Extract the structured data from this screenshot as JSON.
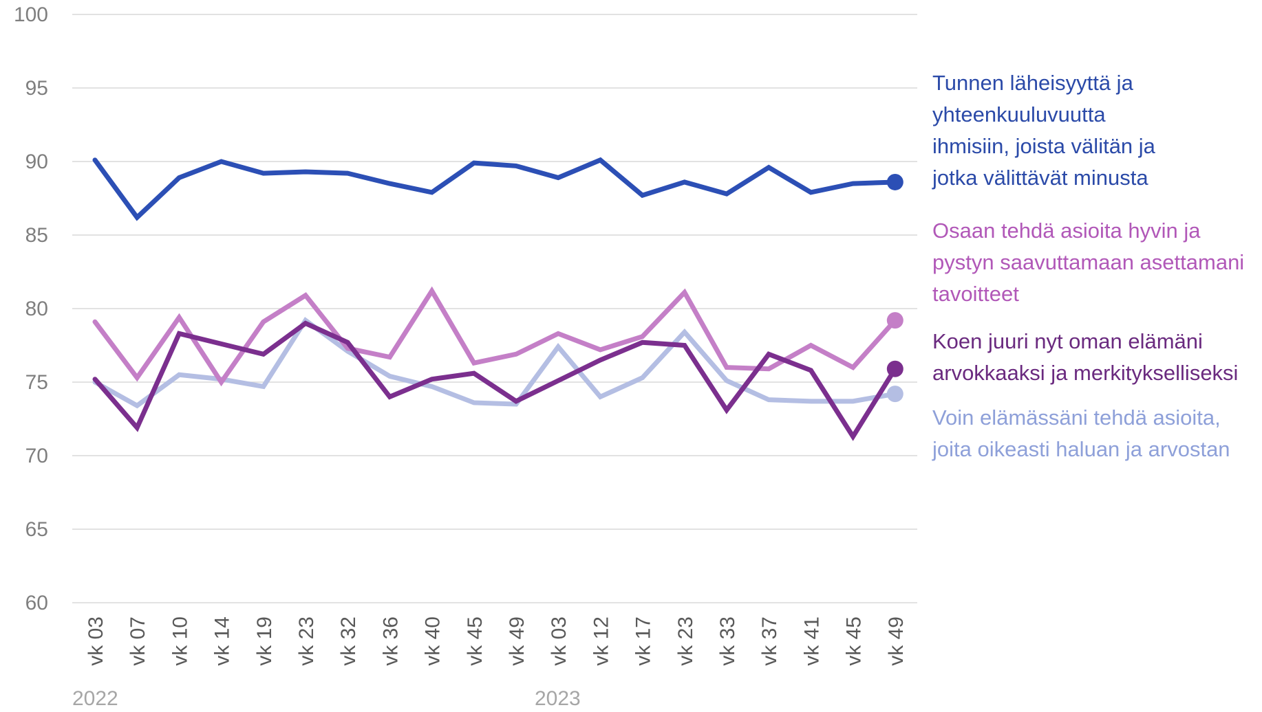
{
  "chart_data": {
    "type": "line",
    "ylim": [
      60,
      100
    ],
    "yticks": [
      "100",
      "95",
      "90",
      "85",
      "80",
      "75",
      "70",
      "65",
      "60"
    ],
    "categories": [
      "vk 03",
      "vk 07",
      "vk 10",
      "vk 14",
      "vk 19",
      "vk 23",
      "vk 32",
      "vk 36",
      "vk 40",
      "vk 45",
      "vk 49",
      "vk 03",
      "vk 12",
      "vk 17",
      "vk 23",
      "vk 33",
      "vk 37",
      "vk 41",
      "vk 45",
      "vk 49"
    ],
    "years": [
      {
        "label": "2022",
        "index": 0
      },
      {
        "label": "2023",
        "index": 11
      }
    ],
    "grid": true,
    "legend_placement": "right",
    "series": [
      {
        "name": "Voin elämässäni tehdä asioita, joita oikeasti haluan ja arvostan",
        "color": "#b4bee3",
        "values": [
          75.0,
          73.4,
          75.5,
          75.2,
          74.7,
          79.2,
          77.1,
          75.4,
          74.7,
          73.6,
          73.5,
          77.4,
          74.0,
          75.3,
          78.4,
          75.1,
          73.8,
          73.7,
          73.7,
          74.2
        ]
      },
      {
        "name": "Osaan tehdä asioita hyvin ja pystyn saavuttamaan asettamani tavoitteet",
        "color": "#c47fc7",
        "values": [
          79.1,
          75.3,
          79.4,
          75.0,
          79.1,
          80.9,
          77.3,
          76.7,
          81.2,
          76.3,
          76.9,
          78.3,
          77.2,
          78.1,
          81.1,
          76.0,
          75.9,
          77.5,
          76.0,
          79.2
        ]
      },
      {
        "name": "Koen juuri nyt oman elämäni arvokkaaksi ja merkitykselliseksi",
        "color": "#7b2f8e",
        "values": [
          75.2,
          71.9,
          78.3,
          77.6,
          76.9,
          79.0,
          77.7,
          74.0,
          75.2,
          75.6,
          73.7,
          75.1,
          76.5,
          77.7,
          77.5,
          73.1,
          76.9,
          75.8,
          71.3,
          75.9
        ]
      },
      {
        "name": "Tunnen läheisyyttä ja yhteenkuuluvuutta ihmisiin, joista välitän ja jotka välittävät minusta",
        "color": "#2c4fb5",
        "values": [
          90.1,
          86.2,
          88.9,
          90.0,
          89.2,
          89.3,
          89.2,
          88.5,
          87.9,
          89.9,
          89.7,
          88.9,
          90.1,
          87.7,
          88.6,
          87.8,
          89.6,
          87.9,
          88.5,
          88.6
        ]
      }
    ]
  },
  "legend": [
    {
      "id": "blue",
      "lines": [
        "Tunnen läheisyyttä ja",
        "yhteenkuuluvuutta",
        "ihmisiin, joista välitän ja",
        "jotka välittävät minusta"
      ],
      "color": "#2b4aa8"
    },
    {
      "id": "pink",
      "lines": [
        "Osaan tehdä asioita hyvin ja",
        "pystyn saavuttamaan asettamani",
        "tavoitteet"
      ],
      "color": "#b158b8"
    },
    {
      "id": "purple",
      "lines": [
        "Koen juuri nyt oman elämäni",
        "arvokkaaksi ja merkitykselliseksi"
      ],
      "color": "#6a2a7f"
    },
    {
      "id": "light",
      "lines": [
        "Voin elämässäni tehdä asioita,",
        "joita oikeasti haluan ja arvostan"
      ],
      "color": "#8ea0d9"
    }
  ]
}
